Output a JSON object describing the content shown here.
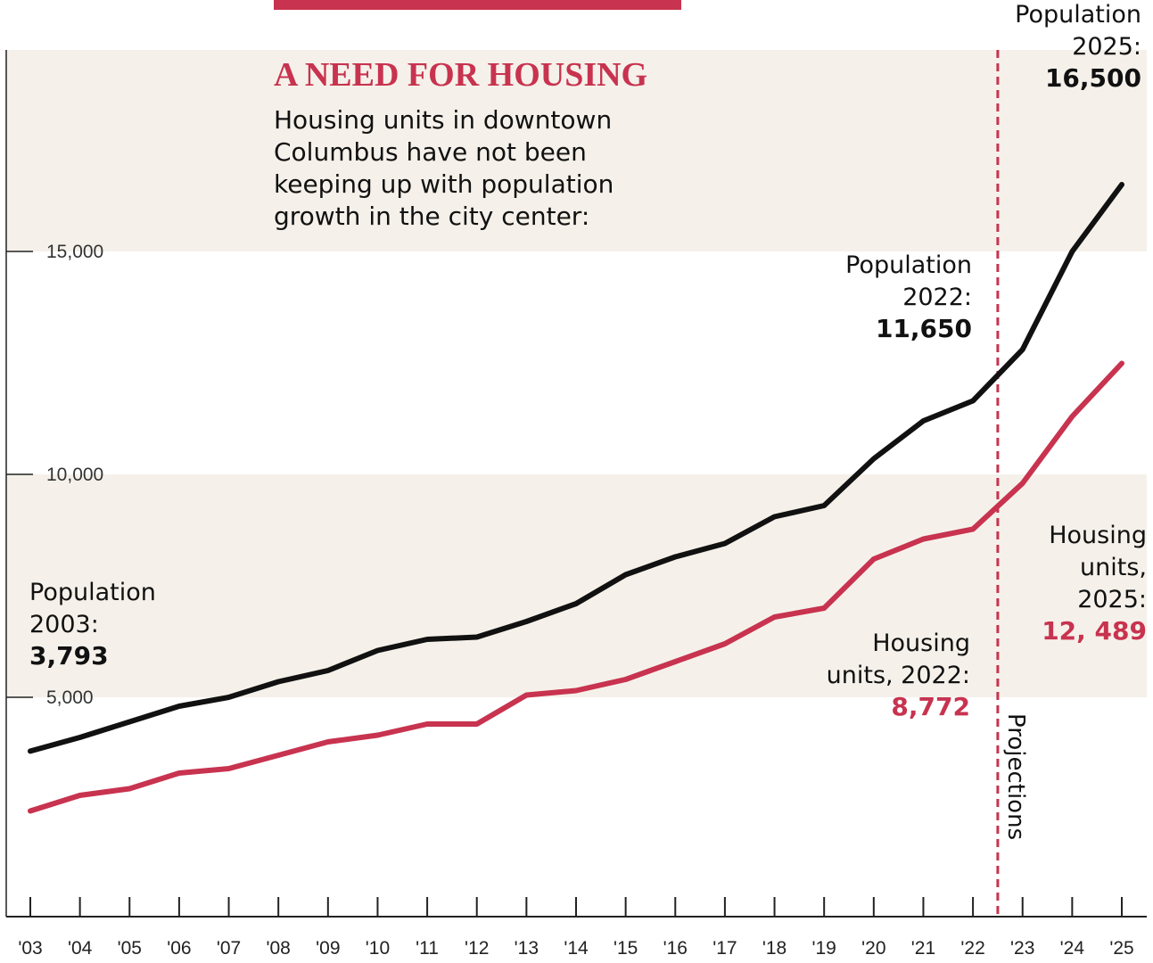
{
  "colors": {
    "population": "#111111",
    "housing": "#c8334f",
    "band": "#f5f1ea",
    "accent": "#c8334f"
  },
  "header": {
    "title": "A NEED FOR HOUSING",
    "subtitle_lines": [
      "Housing units in downtown",
      "Columbus have not been",
      "keeping up with population",
      "growth in the city center:"
    ]
  },
  "annotations": {
    "pop2003": {
      "lines": [
        "Population",
        "2003:"
      ],
      "value": "3,793"
    },
    "pop2022": {
      "lines": [
        "Population",
        "2022:"
      ],
      "value": "11,650"
    },
    "pop2025": {
      "lines": [
        "Population",
        "2025:"
      ],
      "value": "16,500"
    },
    "housing2022": {
      "lines": [
        "Housing",
        "units, 2022:"
      ],
      "value": "8,772"
    },
    "housing2025": {
      "lines": [
        "Housing",
        "units,",
        "2025:"
      ],
      "value": "12, 489"
    },
    "projections": "Projections"
  },
  "chart_data": {
    "type": "line",
    "title": "A NEED FOR HOUSING",
    "categories": [
      "'03",
      "'04",
      "'05",
      "'06",
      "'07",
      "'08",
      "'09",
      "'10",
      "'11",
      "'12",
      "'13",
      "'14",
      "'15",
      "'16",
      "'17",
      "'18",
      "'19",
      "'20",
      "'21",
      "'22",
      "'23",
      "'24",
      "'25"
    ],
    "series": [
      {
        "name": "Population",
        "values": [
          3793,
          4100,
          4450,
          4800,
          5000,
          5350,
          5600,
          6050,
          6300,
          6350,
          6700,
          7100,
          7750,
          8150,
          8450,
          9050,
          9300,
          10350,
          11200,
          11650,
          12800,
          15000,
          16500
        ]
      },
      {
        "name": "Housing units",
        "values": [
          2450,
          2800,
          2950,
          3300,
          3400,
          3700,
          4000,
          4150,
          4400,
          4400,
          5050,
          5150,
          5400,
          5800,
          6200,
          6800,
          7000,
          8100,
          8550,
          8772,
          9800,
          11300,
          12489
        ]
      }
    ],
    "y_ticks": [
      5000,
      10000,
      15000
    ],
    "y_tick_labels": [
      "5,000",
      "10,000",
      "15,000"
    ],
    "ylim": [
      0,
      20000
    ],
    "projection_start_after": "'22",
    "shaded_bands": [
      [
        5000,
        10000
      ],
      [
        15000,
        20000
      ]
    ],
    "xlabel": "",
    "ylabel": ""
  }
}
